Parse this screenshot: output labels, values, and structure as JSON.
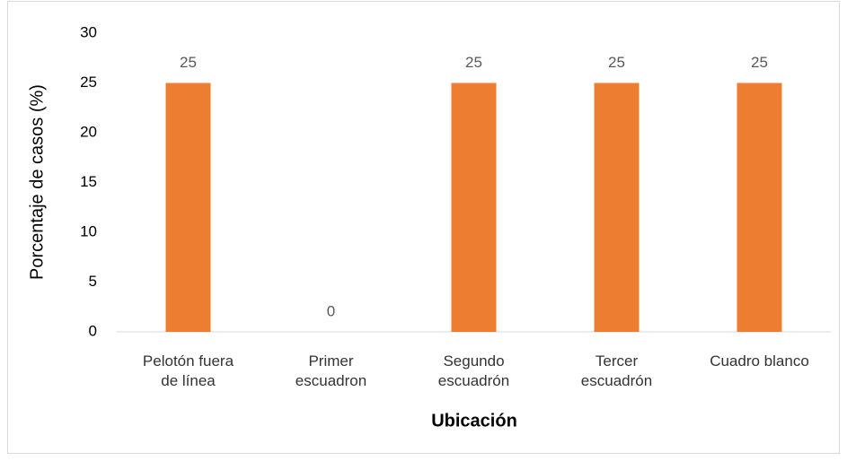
{
  "chart_data": {
    "type": "bar",
    "categories": [
      "Pelotón fuera\nde línea",
      "Primer\nescuadron",
      "Segundo\nescuadrón",
      "Tercer\nescuadrón",
      "Cuadro blanco"
    ],
    "values": [
      25,
      0,
      25,
      25,
      25
    ],
    "color": "#ed7d31",
    "ylim": [
      0,
      30
    ],
    "yticks": [
      0,
      5,
      10,
      15,
      20,
      25,
      30
    ],
    "x_label": "Ubicación",
    "y_label": "Porcentaje de casos (%)",
    "grid": false
  }
}
